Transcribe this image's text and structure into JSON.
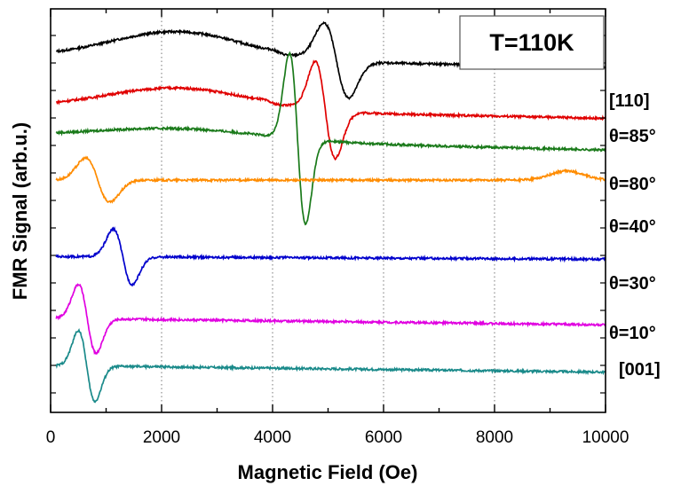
{
  "chart_data": {
    "type": "line",
    "xlabel": "Magnetic Field (Oe)",
    "ylabel": "FMR Signal (arb.u.)",
    "xlim": [
      0,
      10000
    ],
    "xticks": [
      "0",
      "2000",
      "4000",
      "6000",
      "8000",
      "10000"
    ],
    "grid": "vertical dotted",
    "annotation": "T=110K",
    "series": [
      {
        "name": "[110]",
        "color": "#000000",
        "baseline": 0.86,
        "drift": -0.2,
        "bump": {
          "x": 2300,
          "width": 1200,
          "amp": 0.15
        },
        "peaks": [
          {
            "type": "deriv",
            "center": 5150,
            "width": 220,
            "amp": 3.3
          },
          {
            "type": "deriv",
            "center": 4100,
            "width": 130,
            "amp": 0.1
          }
        ]
      },
      {
        "name": "θ=85°",
        "color": "#e00000",
        "baseline": 0.58,
        "drift": -0.2,
        "bump": {
          "x": 2300,
          "width": 1300,
          "amp": 0.12
        },
        "peaks": [
          {
            "type": "deriv",
            "center": 4950,
            "width": 180,
            "amp": 4.3
          },
          {
            "type": "deriv",
            "center": 3950,
            "width": 130,
            "amp": 0.1
          }
        ]
      },
      {
        "name": "θ=80°",
        "color": "#1a7a1a",
        "baseline": 0.42,
        "drift": -0.25,
        "bump": {
          "x": 2300,
          "width": 1500,
          "amp": 0.06
        },
        "peaks": [
          {
            "type": "deriv",
            "center": 4450,
            "width": 145,
            "amp": 7.7
          }
        ]
      },
      {
        "name": "θ=40°",
        "color": "#ff8c00",
        "baseline": 0.18,
        "drift": 0.0,
        "bump": {
          "x": 9300,
          "width": 300,
          "amp": 0.05
        },
        "peaks": [
          {
            "type": "deriv",
            "center": 850,
            "width": 220,
            "amp": 2.0
          }
        ]
      },
      {
        "name": "θ=30°",
        "color": "#0000cc",
        "baseline": -0.24,
        "drift": -0.05,
        "bump": {
          "x": 2300,
          "width": 400,
          "amp": 0.0
        },
        "peaks": [
          {
            "type": "deriv",
            "center": 1300,
            "width": 170,
            "amp": 2.5
          }
        ]
      },
      {
        "name": "θ=10°",
        "color": "#e000e0",
        "baseline": -0.58,
        "drift": -0.12,
        "bump": {
          "x": 2300,
          "width": 400,
          "amp": 0.0
        },
        "peaks": [
          {
            "type": "deriv",
            "center": 660,
            "width": 160,
            "amp": 3.1
          }
        ]
      },
      {
        "name": "[001]",
        "color": "#1a8a8a",
        "baseline": -0.84,
        "drift": -0.12,
        "bump": {
          "x": 2300,
          "width": 400,
          "amp": 0.0
        },
        "peaks": [
          {
            "type": "deriv",
            "center": 650,
            "width": 150,
            "amp": 3.2
          }
        ]
      }
    ]
  }
}
